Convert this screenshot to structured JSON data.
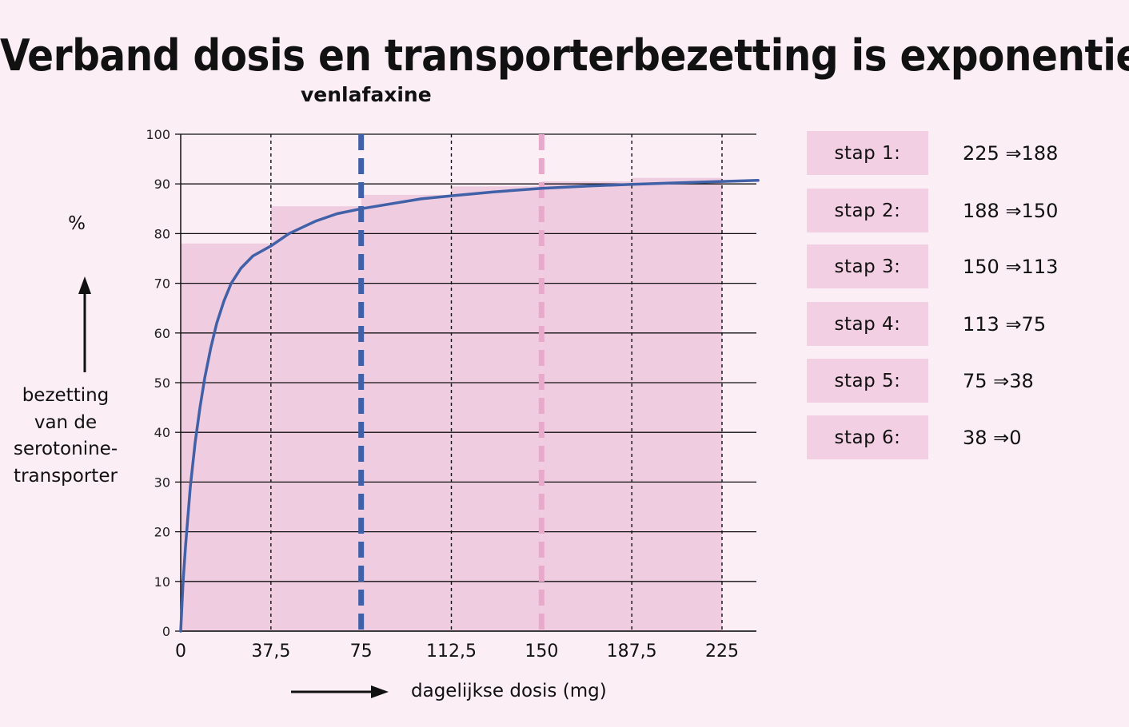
{
  "title": "Verband dosis en transporterbezetting is exponentieel",
  "subtitle": "venlafaxine",
  "colors": {
    "background": "#fbeef4",
    "pink_fill": "#f0cce0",
    "curve": "#4060a8",
    "blue_dash": "#4060a8",
    "pink_dash": "#e8aacb"
  },
  "chart_data": {
    "type": "line",
    "ylabel_unit": "%",
    "ylabel_lines": [
      "bezetting",
      "van de",
      "serotonine-",
      "transporter"
    ],
    "xlabel": "dagelijkse dosis (mg)",
    "x_tick_values": [
      0,
      37.5,
      75,
      112.5,
      150,
      187.5,
      225
    ],
    "x_tick_labels": [
      "0",
      "37,5",
      "75",
      "112,5",
      "150",
      "187,5",
      "225"
    ],
    "y_ticks": [
      0,
      10,
      20,
      30,
      40,
      50,
      60,
      70,
      80,
      90,
      100
    ],
    "xlim": [
      0,
      240
    ],
    "ylim": [
      0,
      100
    ],
    "grid": "horizontal solid lines; vertical dashed lines at x ticks",
    "curve": {
      "x": [
        0,
        1,
        2,
        4,
        6,
        8,
        10,
        12.5,
        15,
        18,
        21,
        25,
        30,
        37.5,
        45,
        56,
        65,
        75,
        90,
        100,
        112.5,
        130,
        150,
        170,
        187.5,
        205,
        225,
        240
      ],
      "y": [
        0,
        10,
        17,
        29,
        38,
        45,
        51,
        57,
        62,
        66.5,
        70,
        73,
        75.5,
        77.5,
        80,
        82.5,
        84,
        85,
        86.2,
        87,
        87.6,
        88.4,
        89.1,
        89.6,
        89.9,
        90.2,
        90.5,
        90.7
      ]
    },
    "steps": [
      {
        "x_from": 0,
        "x_to": 37.5,
        "y": 78
      },
      {
        "x_from": 37.5,
        "x_to": 75,
        "y": 85.5
      },
      {
        "x_from": 75,
        "x_to": 112.5,
        "y": 87.8
      },
      {
        "x_from": 112.5,
        "x_to": 150,
        "y": 89.5
      },
      {
        "x_from": 150,
        "x_to": 187.5,
        "y": 90.5
      },
      {
        "x_from": 187.5,
        "x_to": 225,
        "y": 91.2
      }
    ],
    "reference_lines": [
      {
        "x": 75,
        "color": "blue"
      },
      {
        "x": 150,
        "color": "pink"
      }
    ]
  },
  "legend": [
    {
      "label": "stap 1:",
      "value": "225 ⇒188"
    },
    {
      "label": "stap 2:",
      "value": "188 ⇒150"
    },
    {
      "label": "stap 3:",
      "value": "150 ⇒113"
    },
    {
      "label": "stap 4:",
      "value": "113 ⇒75"
    },
    {
      "label": "stap 5:",
      "value": "75 ⇒38"
    },
    {
      "label": "stap 6:",
      "value": "38 ⇒0"
    }
  ]
}
